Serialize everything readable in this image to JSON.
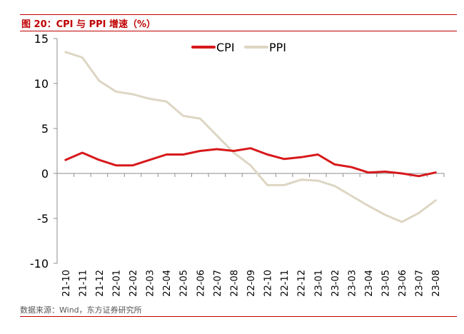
{
  "header": {
    "title": "图 20：CPI 与 PPI 增速（%）"
  },
  "source": "数据来源：Wind，东方证券研究所",
  "colors": {
    "cpi": "#d7191c",
    "ppi": "#ddd6c3",
    "axis": "#8c8c8c",
    "accent": "#c00000"
  },
  "chart_data": {
    "type": "line",
    "categories": [
      "21-10",
      "21-11",
      "21-12",
      "22-01",
      "22-02",
      "22-03",
      "22-04",
      "22-05",
      "22-06",
      "22-07",
      "22-08",
      "22-09",
      "22-10",
      "22-11",
      "22-12",
      "23-01",
      "23-02",
      "23-03",
      "23-04",
      "23-05",
      "23-06",
      "23-07",
      "23-08"
    ],
    "series": [
      {
        "name": "CPI",
        "values": [
          1.5,
          2.3,
          1.5,
          0.9,
          0.9,
          1.5,
          2.1,
          2.1,
          2.5,
          2.7,
          2.5,
          2.8,
          2.1,
          1.6,
          1.8,
          2.1,
          1.0,
          0.7,
          0.1,
          0.2,
          0.0,
          -0.3,
          0.1
        ]
      },
      {
        "name": "PPI",
        "values": [
          13.5,
          12.9,
          10.3,
          9.1,
          8.8,
          8.3,
          8.0,
          6.4,
          6.1,
          4.2,
          2.3,
          0.9,
          -1.3,
          -1.3,
          -0.7,
          -0.8,
          -1.4,
          -2.5,
          -3.6,
          -4.6,
          -5.4,
          -4.4,
          -3.0
        ]
      }
    ],
    "ylim": [
      -10,
      15
    ],
    "yticks": [
      15,
      10,
      5,
      0,
      -5,
      -10
    ],
    "legend": "top-center",
    "grid": false
  }
}
